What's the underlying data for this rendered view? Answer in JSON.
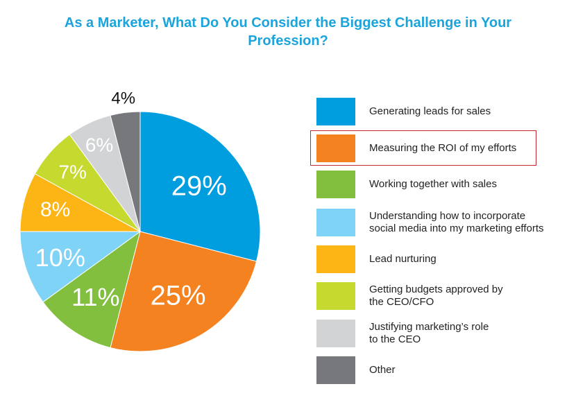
{
  "title": "As a Marketer, What Do You Consider the Biggest Challenge in Your Profession?",
  "chart_data": {
    "type": "pie",
    "title": "As a Marketer, What Do You Consider the Biggest Challenge in Your Profession?",
    "slices": [
      {
        "label": "Generating leads for sales",
        "value": 29,
        "display": "29%",
        "color": "#009ddf"
      },
      {
        "label": "Measuring the ROI of my efforts",
        "value": 25,
        "display": "25%",
        "color": "#f58220"
      },
      {
        "label": "Working together with sales",
        "value": 11,
        "display": "11%",
        "color": "#82bf3f"
      },
      {
        "label": "Understanding how to incorporate social media into my marketing efforts",
        "value": 10,
        "display": "10%",
        "color": "#7fd3f7"
      },
      {
        "label": "Lead nurturing",
        "value": 8,
        "display": "8%",
        "color": "#fdb515"
      },
      {
        "label": "Getting budgets approved by the CEO/CFO",
        "value": 7,
        "display": "7%",
        "color": "#c6d92f"
      },
      {
        "label": "Justifying marketing’s role to the CEO",
        "value": 6,
        "display": "6%",
        "color": "#d1d3d4"
      },
      {
        "label": "Other",
        "value": 4,
        "display": "4%",
        "color": "#77787b"
      }
    ],
    "legend_position": "right",
    "highlighted_legend_item": "Measuring the ROI of my efforts"
  },
  "legend": {
    "items": [
      {
        "label_lines": [
          "Generating leads for sales"
        ]
      },
      {
        "label_lines": [
          "Measuring the ROI of my efforts"
        ]
      },
      {
        "label_lines": [
          "Working together with sales"
        ]
      },
      {
        "label_lines": [
          "Understanding how to incorporate",
          "social media into my marketing efforts"
        ]
      },
      {
        "label_lines": [
          "Lead nurturing"
        ]
      },
      {
        "label_lines": [
          "Getting budgets approved by",
          "the CEO/CFO"
        ]
      },
      {
        "label_lines": [
          "Justifying marketing’s role",
          "to the CEO"
        ]
      },
      {
        "label_lines": [
          "Other"
        ]
      }
    ]
  }
}
